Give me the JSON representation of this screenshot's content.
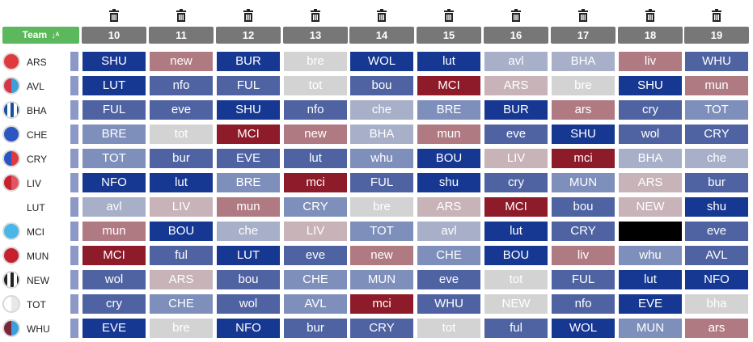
{
  "header": {
    "team_label": "Team",
    "sort_icon": "sort-alpha-icon",
    "delete_icon": "trash-icon",
    "gameweeks": [
      "10",
      "11",
      "12",
      "13",
      "14",
      "15",
      "16",
      "17",
      "18",
      "19"
    ]
  },
  "difficulty_colors": {
    "1": "#d3d3d3",
    "2": "#c7b3b8",
    "3": "#b07a83",
    "4": "#8e1b2a",
    "5": "#a8afc9",
    "6": "#7f8fbc",
    "7": "#4f63a3",
    "8": "#173892",
    "blank": "#000000"
  },
  "teams": [
    {
      "abbr": "ARS",
      "logo": "#e03a3e",
      "logo2": "#e03a3e",
      "fixtures": [
        {
          "o": "SHU",
          "d": "8"
        },
        {
          "o": "new",
          "d": "3"
        },
        {
          "o": "BUR",
          "d": "8"
        },
        {
          "o": "bre",
          "d": "1"
        },
        {
          "o": "WOL",
          "d": "8"
        },
        {
          "o": "lut",
          "d": "8"
        },
        {
          "o": "avl",
          "d": "5"
        },
        {
          "o": "BHA",
          "d": "5"
        },
        {
          "o": "liv",
          "d": "3"
        },
        {
          "o": "WHU",
          "d": "7"
        }
      ]
    },
    {
      "abbr": "AVL",
      "logo": "#d63447",
      "logo2": "#3aa0dc",
      "fixtures": [
        {
          "o": "LUT",
          "d": "8"
        },
        {
          "o": "nfo",
          "d": "7"
        },
        {
          "o": "FUL",
          "d": "7"
        },
        {
          "o": "tot",
          "d": "1"
        },
        {
          "o": "bou",
          "d": "7"
        },
        {
          "o": "MCI",
          "d": "4"
        },
        {
          "o": "ARS",
          "d": "2"
        },
        {
          "o": "bre",
          "d": "1"
        },
        {
          "o": "SHU",
          "d": "8"
        },
        {
          "o": "mun",
          "d": "3"
        }
      ]
    },
    {
      "abbr": "BHA",
      "logo": "#1a4fa0",
      "logo2": "#ffffff",
      "stripes": true,
      "fixtures": [
        {
          "o": "FUL",
          "d": "7"
        },
        {
          "o": "eve",
          "d": "7"
        },
        {
          "o": "SHU",
          "d": "8"
        },
        {
          "o": "nfo",
          "d": "7"
        },
        {
          "o": "che",
          "d": "5"
        },
        {
          "o": "BRE",
          "d": "6"
        },
        {
          "o": "BUR",
          "d": "8"
        },
        {
          "o": "ars",
          "d": "3"
        },
        {
          "o": "cry",
          "d": "7"
        },
        {
          "o": "TOT",
          "d": "6"
        }
      ]
    },
    {
      "abbr": "CHE",
      "logo": "#2e56c0",
      "logo2": "#2e56c0",
      "fixtures": [
        {
          "o": "BRE",
          "d": "6"
        },
        {
          "o": "tot",
          "d": "1"
        },
        {
          "o": "MCI",
          "d": "4"
        },
        {
          "o": "new",
          "d": "3"
        },
        {
          "o": "BHA",
          "d": "5"
        },
        {
          "o": "mun",
          "d": "3"
        },
        {
          "o": "eve",
          "d": "7"
        },
        {
          "o": "SHU",
          "d": "8"
        },
        {
          "o": "wol",
          "d": "7"
        },
        {
          "o": "CRY",
          "d": "7"
        }
      ]
    },
    {
      "abbr": "CRY",
      "logo": "#2a54c4",
      "logo2": "#e03a3e",
      "fixtures": [
        {
          "o": "TOT",
          "d": "6"
        },
        {
          "o": "bur",
          "d": "7"
        },
        {
          "o": "EVE",
          "d": "7"
        },
        {
          "o": "lut",
          "d": "7"
        },
        {
          "o": "whu",
          "d": "6"
        },
        {
          "o": "BOU",
          "d": "8"
        },
        {
          "o": "LIV",
          "d": "2"
        },
        {
          "o": "mci",
          "d": "4"
        },
        {
          "o": "BHA",
          "d": "5"
        },
        {
          "o": "che",
          "d": "5"
        }
      ]
    },
    {
      "abbr": "LIV",
      "logo": "#c8202d",
      "logo2": "#e05560",
      "fixtures": [
        {
          "o": "NFO",
          "d": "8"
        },
        {
          "o": "lut",
          "d": "8"
        },
        {
          "o": "BRE",
          "d": "6"
        },
        {
          "o": "mci",
          "d": "4"
        },
        {
          "o": "FUL",
          "d": "7"
        },
        {
          "o": "shu",
          "d": "8"
        },
        {
          "o": "cry",
          "d": "7"
        },
        {
          "o": "MUN",
          "d": "6"
        },
        {
          "o": "ARS",
          "d": "2"
        },
        {
          "o": "bur",
          "d": "7"
        }
      ]
    },
    {
      "abbr": "LUT",
      "logo": "",
      "logo2": "",
      "fixtures": [
        {
          "o": "avl",
          "d": "5"
        },
        {
          "o": "LIV",
          "d": "2"
        },
        {
          "o": "mun",
          "d": "3"
        },
        {
          "o": "CRY",
          "d": "6"
        },
        {
          "o": "bre",
          "d": "1"
        },
        {
          "o": "ARS",
          "d": "2"
        },
        {
          "o": "MCI",
          "d": "4"
        },
        {
          "o": "bou",
          "d": "7"
        },
        {
          "o": "NEW",
          "d": "2"
        },
        {
          "o": "shu",
          "d": "8"
        }
      ]
    },
    {
      "abbr": "MCI",
      "logo": "#48b7e8",
      "logo2": "#48b7e8",
      "fixtures": [
        {
          "o": "mun",
          "d": "3"
        },
        {
          "o": "BOU",
          "d": "8"
        },
        {
          "o": "che",
          "d": "5"
        },
        {
          "o": "LIV",
          "d": "2"
        },
        {
          "o": "TOT",
          "d": "6"
        },
        {
          "o": "avl",
          "d": "5"
        },
        {
          "o": "lut",
          "d": "8"
        },
        {
          "o": "CRY",
          "d": "7"
        },
        {
          "o": "",
          "d": "blank"
        },
        {
          "o": "eve",
          "d": "7"
        }
      ]
    },
    {
      "abbr": "MUN",
      "logo": "#c8202d",
      "logo2": "#c8202d",
      "fixtures": [
        {
          "o": "MCI",
          "d": "4"
        },
        {
          "o": "ful",
          "d": "7"
        },
        {
          "o": "LUT",
          "d": "8"
        },
        {
          "o": "eve",
          "d": "7"
        },
        {
          "o": "new",
          "d": "3"
        },
        {
          "o": "CHE",
          "d": "6"
        },
        {
          "o": "BOU",
          "d": "8"
        },
        {
          "o": "liv",
          "d": "3"
        },
        {
          "o": "whu",
          "d": "6"
        },
        {
          "o": "AVL",
          "d": "7"
        }
      ]
    },
    {
      "abbr": "NEW",
      "logo": "#222222",
      "logo2": "#ffffff",
      "stripes": true,
      "fixtures": [
        {
          "o": "wol",
          "d": "7"
        },
        {
          "o": "ARS",
          "d": "2"
        },
        {
          "o": "bou",
          "d": "7"
        },
        {
          "o": "CHE",
          "d": "6"
        },
        {
          "o": "MUN",
          "d": "6"
        },
        {
          "o": "eve",
          "d": "7"
        },
        {
          "o": "tot",
          "d": "1"
        },
        {
          "o": "FUL",
          "d": "7"
        },
        {
          "o": "lut",
          "d": "8"
        },
        {
          "o": "NFO",
          "d": "8"
        }
      ]
    },
    {
      "abbr": "TOT",
      "logo": "#ffffff",
      "logo2": "#e8e8e8",
      "fixtures": [
        {
          "o": "cry",
          "d": "7"
        },
        {
          "o": "CHE",
          "d": "6"
        },
        {
          "o": "wol",
          "d": "7"
        },
        {
          "o": "AVL",
          "d": "6"
        },
        {
          "o": "mci",
          "d": "4"
        },
        {
          "o": "WHU",
          "d": "7"
        },
        {
          "o": "NEW",
          "d": "1"
        },
        {
          "o": "nfo",
          "d": "7"
        },
        {
          "o": "EVE",
          "d": "8"
        },
        {
          "o": "bha",
          "d": "1"
        }
      ]
    },
    {
      "abbr": "WHU",
      "logo": "#7a263a",
      "logo2": "#3aa0dc",
      "fixtures": [
        {
          "o": "EVE",
          "d": "8"
        },
        {
          "o": "bre",
          "d": "1"
        },
        {
          "o": "NFO",
          "d": "8"
        },
        {
          "o": "bur",
          "d": "7"
        },
        {
          "o": "CRY",
          "d": "7"
        },
        {
          "o": "tot",
          "d": "1"
        },
        {
          "o": "ful",
          "d": "7"
        },
        {
          "o": "WOL",
          "d": "8"
        },
        {
          "o": "MUN",
          "d": "6"
        },
        {
          "o": "ars",
          "d": "3"
        }
      ]
    }
  ]
}
